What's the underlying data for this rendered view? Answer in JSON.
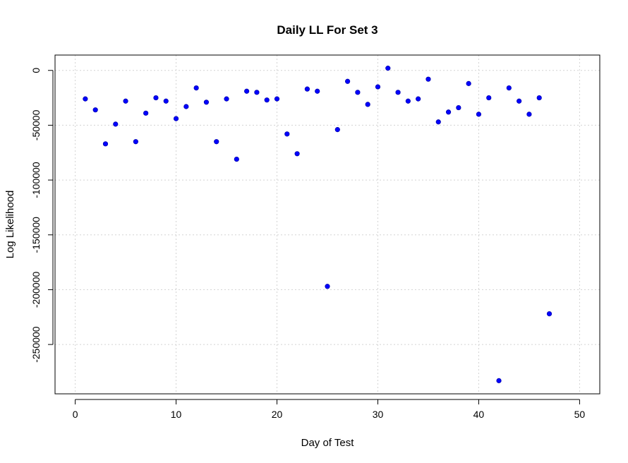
{
  "chart_data": {
    "type": "scatter",
    "title": "Daily LL For Set 3",
    "xlabel": "Day of Test",
    "ylabel": "Log Likelihood",
    "xlim": [
      -2,
      52
    ],
    "ylim": [
      -295000,
      14000
    ],
    "xticks": [
      0,
      10,
      20,
      30,
      40,
      50
    ],
    "yticks": [
      0,
      -50000,
      -100000,
      -150000,
      -200000,
      -250000
    ],
    "grid": true,
    "point_color": "#0000ff",
    "series": [
      {
        "name": "Daily LL",
        "x": [
          1,
          2,
          3,
          4,
          5,
          6,
          7,
          8,
          9,
          10,
          11,
          12,
          13,
          14,
          15,
          16,
          17,
          18,
          19,
          20,
          21,
          22,
          23,
          24,
          25,
          26,
          27,
          28,
          29,
          30,
          31,
          32,
          33,
          34,
          35,
          36,
          37,
          38,
          39,
          40,
          41,
          42,
          43,
          44,
          45,
          46,
          47
        ],
        "y": [
          -26000,
          -36000,
          -67000,
          -49000,
          -28000,
          -65000,
          -39000,
          -25000,
          -28000,
          -44000,
          -33000,
          -16000,
          -29000,
          -65000,
          -26000,
          -81000,
          -19000,
          -20000,
          -27000,
          -26000,
          -58000,
          -76000,
          -17000,
          -19000,
          -197000,
          -54000,
          -10000,
          -20000,
          -31000,
          -15000,
          2000,
          -20000,
          -28000,
          -26000,
          -8000,
          -47000,
          -38000,
          -34000,
          -12000,
          -40000,
          -25000,
          -283000,
          -16000,
          -28000,
          -40000,
          -25000,
          -222000
        ]
      }
    ]
  }
}
